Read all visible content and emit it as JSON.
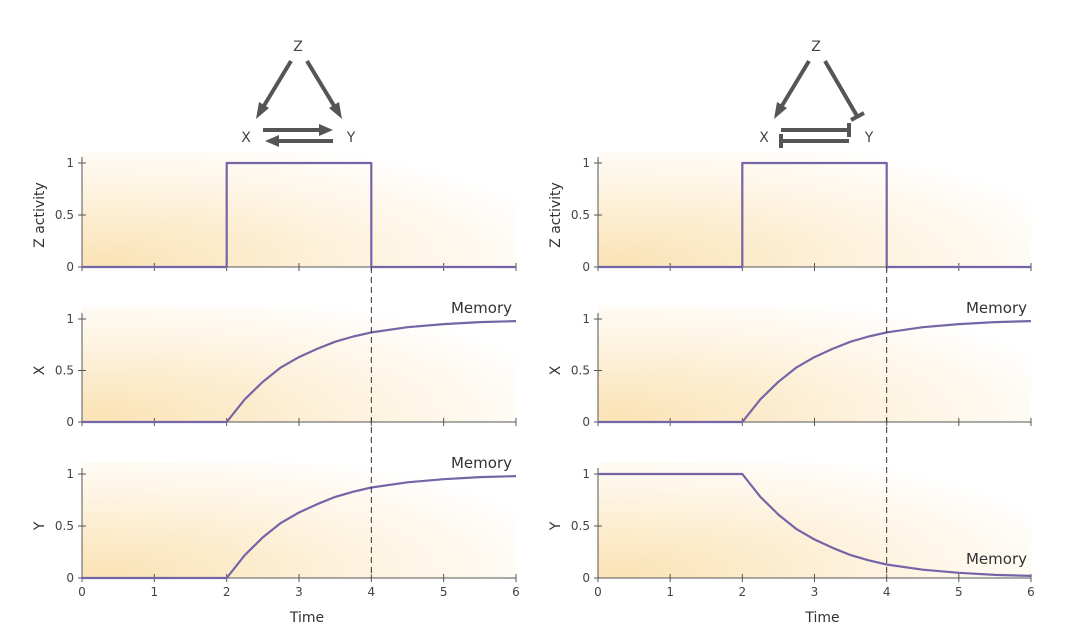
{
  "colors": {
    "series": "#7565a6",
    "edge": "#555555",
    "axis": "#555555",
    "background_warm": "#fbe3b6",
    "background_fade": "#ffffff"
  },
  "diagrams": [
    {
      "nodes": {
        "z": "Z",
        "x": "X",
        "y": "Y"
      },
      "edges": [
        {
          "from": "Z",
          "to": "X",
          "type": "activation"
        },
        {
          "from": "Z",
          "to": "Y",
          "type": "activation"
        },
        {
          "from": "X",
          "to": "Y",
          "type": "activation"
        },
        {
          "from": "Y",
          "to": "X",
          "type": "activation"
        }
      ]
    },
    {
      "nodes": {
        "z": "Z",
        "x": "X",
        "y": "Y"
      },
      "edges": [
        {
          "from": "Z",
          "to": "X",
          "type": "activation"
        },
        {
          "from": "Z",
          "to": "Y",
          "type": "repression"
        },
        {
          "from": "X",
          "to": "Y",
          "type": "repression"
        },
        {
          "from": "Y",
          "to": "X",
          "type": "repression"
        }
      ]
    }
  ],
  "chart_data": [
    {
      "type": "line",
      "panel": "left-top",
      "ylabel": "Z activity",
      "xlabel": "",
      "xlim": [
        0,
        6
      ],
      "ylim": [
        0,
        1
      ],
      "yticks": [
        "0",
        "0.5",
        "1"
      ],
      "xticks": [],
      "annotation": "",
      "series": [
        {
          "x": [
            0,
            2,
            2,
            4,
            4,
            6
          ],
          "y": [
            0,
            0,
            1,
            1,
            0,
            0
          ]
        }
      ]
    },
    {
      "type": "line",
      "panel": "left-middle",
      "ylabel": "X",
      "xlabel": "",
      "xlim": [
        0,
        6
      ],
      "ylim": [
        0,
        1
      ],
      "yticks": [
        "0",
        "0.5",
        "1"
      ],
      "xticks": [],
      "annotation": "Memory",
      "series": [
        {
          "x": [
            0,
            2,
            2.25,
            2.5,
            2.75,
            3,
            3.25,
            3.5,
            3.75,
            4,
            4.5,
            5,
            5.5,
            6
          ],
          "y": [
            0,
            0,
            0.22,
            0.39,
            0.53,
            0.63,
            0.71,
            0.78,
            0.83,
            0.87,
            0.92,
            0.95,
            0.97,
            0.98
          ]
        }
      ]
    },
    {
      "type": "line",
      "panel": "left-bottom",
      "ylabel": "Y",
      "xlabel": "Time",
      "xlim": [
        0,
        6
      ],
      "ylim": [
        0,
        1
      ],
      "yticks": [
        "0",
        "0.5",
        "1"
      ],
      "xticks": [
        "0",
        "1",
        "2",
        "3",
        "4",
        "5",
        "6"
      ],
      "annotation": "Memory",
      "series": [
        {
          "x": [
            0,
            2,
            2.25,
            2.5,
            2.75,
            3,
            3.25,
            3.5,
            3.75,
            4,
            4.5,
            5,
            5.5,
            6
          ],
          "y": [
            0,
            0,
            0.22,
            0.39,
            0.53,
            0.63,
            0.71,
            0.78,
            0.83,
            0.87,
            0.92,
            0.95,
            0.97,
            0.98
          ]
        }
      ]
    },
    {
      "type": "line",
      "panel": "right-top",
      "ylabel": "Z activity",
      "xlabel": "",
      "xlim": [
        0,
        6
      ],
      "ylim": [
        0,
        1
      ],
      "yticks": [
        "0",
        "0.5",
        "1"
      ],
      "xticks": [],
      "annotation": "",
      "series": [
        {
          "x": [
            0,
            2,
            2,
            4,
            4,
            6
          ],
          "y": [
            0,
            0,
            1,
            1,
            0,
            0
          ]
        }
      ]
    },
    {
      "type": "line",
      "panel": "right-middle",
      "ylabel": "X",
      "xlabel": "",
      "xlim": [
        0,
        6
      ],
      "ylim": [
        0,
        1
      ],
      "yticks": [
        "0",
        "0.5",
        "1"
      ],
      "xticks": [],
      "annotation": "Memory",
      "series": [
        {
          "x": [
            0,
            2,
            2.25,
            2.5,
            2.75,
            3,
            3.25,
            3.5,
            3.75,
            4,
            4.5,
            5,
            5.5,
            6
          ],
          "y": [
            0,
            0,
            0.22,
            0.39,
            0.53,
            0.63,
            0.71,
            0.78,
            0.83,
            0.87,
            0.92,
            0.95,
            0.97,
            0.98
          ]
        }
      ]
    },
    {
      "type": "line",
      "panel": "right-bottom",
      "ylabel": "Y",
      "xlabel": "Time",
      "xlim": [
        0,
        6
      ],
      "ylim": [
        0,
        1
      ],
      "yticks": [
        "0",
        "0.5",
        "1"
      ],
      "xticks": [
        "0",
        "1",
        "2",
        "3",
        "4",
        "5",
        "6"
      ],
      "annotation": "Memory",
      "series": [
        {
          "x": [
            0,
            2,
            2.25,
            2.5,
            2.75,
            3,
            3.25,
            3.5,
            3.75,
            4,
            4.5,
            5,
            5.5,
            6
          ],
          "y": [
            1,
            1,
            0.78,
            0.61,
            0.47,
            0.37,
            0.29,
            0.22,
            0.17,
            0.13,
            0.08,
            0.05,
            0.03,
            0.02
          ]
        }
      ]
    }
  ]
}
